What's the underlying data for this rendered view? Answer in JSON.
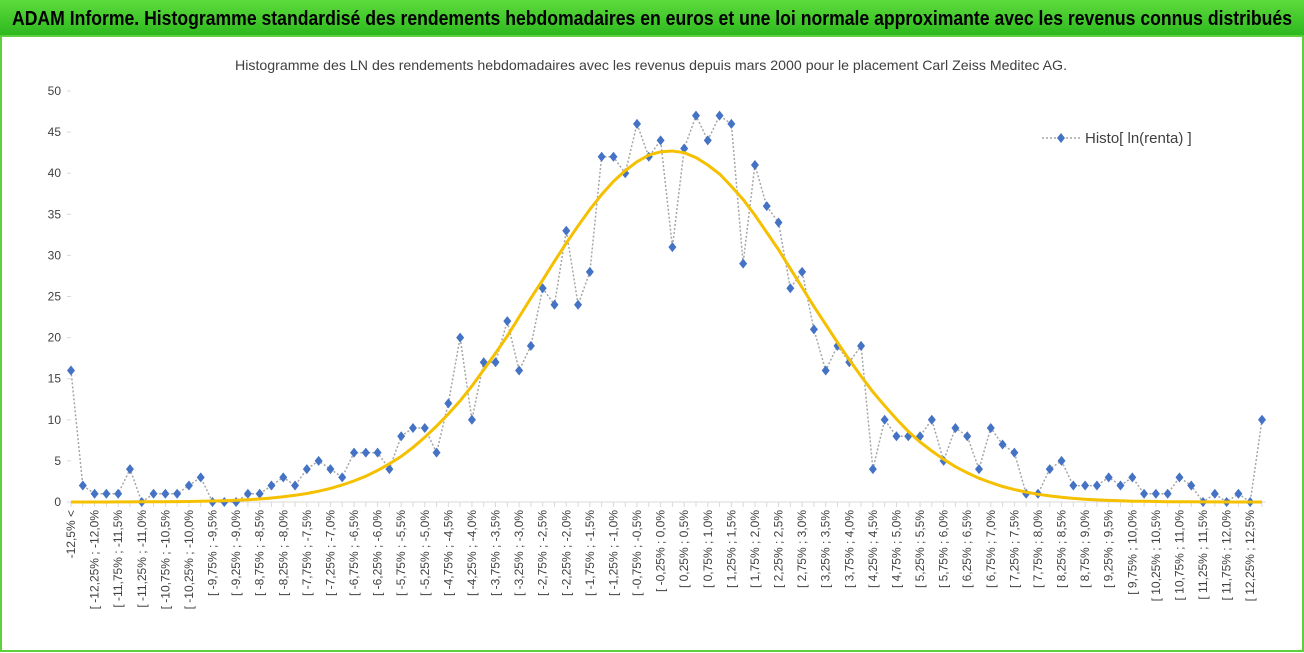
{
  "header": {
    "title": "ADAM Informe. Histogramme standardisé des rendements hebdomadaires en euros et une loi normale approximante avec les revenus connus distribués"
  },
  "chart_data": {
    "type": "line",
    "title": "Histogramme des LN des rendements hebdomadaires avec les revenus depuis mars 2000 pour le placement Carl Zeiss Meditec AG.",
    "categories": [
      "-12,5% <",
      null,
      "[ -12,25% ; -12,0%",
      null,
      "[ -11,75% ; -11,5%",
      null,
      "[ -11,25% ; -11,0%",
      null,
      "[ -10,75% ; -10,5%",
      null,
      "[ -10,25% ; -10,0%",
      null,
      "[ -9,75% ; -9,5%",
      null,
      "[ -9,25% ; -9,0%",
      null,
      "[ -8,75% ; -8,5%",
      null,
      "[ -8,25% ; -8,0%",
      null,
      "[ -7,75% ; -7,5%",
      null,
      "[ -7,25% ; -7,0%",
      null,
      "[ -6,75% ; -6,5%",
      null,
      "[ -6,25% ; -6,0%",
      null,
      "[ -5,75% ; -5,5%",
      null,
      "[ -5,25% ; -5,0%",
      null,
      "[ -4,75% ; -4,5%",
      null,
      "[ -4,25% ; -4,0%",
      null,
      "[ -3,75% ; -3,5%",
      null,
      "[ -3,25% ; -3,0%",
      null,
      "[ -2,75% ; -2,5%",
      null,
      "[ -2,25% ; -2,0%",
      null,
      "[ -1,75% ; -1,5%",
      null,
      "[ -1,25% ; -1,0%",
      null,
      "[ -0,75% ; -0,5%",
      null,
      "[ -0,25% ; 0,0%",
      null,
      "[ 0,25% ; 0,5%",
      null,
      "[ 0,75% ; 1,0%",
      null,
      "[ 1,25% ; 1,5%",
      null,
      "[ 1,75% ; 2,0%",
      null,
      "[ 2,25% ; 2,5%",
      null,
      "[ 2,75% ; 3,0%",
      null,
      "[ 3,25% ; 3,5%",
      null,
      "[ 3,75% ; 4,0%",
      null,
      "[ 4,25% ; 4,5%",
      null,
      "[ 4,75% ; 5,0%",
      null,
      "[ 5,25% ; 5,5%",
      null,
      "[ 5,75% ; 6,0%",
      null,
      "[ 6,25% ; 6,5%",
      null,
      "[ 6,75% ; 7,0%",
      null,
      "[ 7,25% ; 7,5%",
      null,
      "[ 7,75% ; 8,0%",
      null,
      "[ 8,25% ; 8,5%",
      null,
      "[ 8,75% ; 9,0%",
      null,
      "[ 9,25% ; 9,5%",
      null,
      "[ 9,75% ; 10,0%",
      null,
      "[ 10,25% ; 10,5%",
      null,
      "[ 10,75% ; 11,0%",
      null,
      "[ 11,25% ; 11,5%",
      null,
      "[ 11,75% ; 12,0%",
      null,
      "[ 12,25% ; 12,5%",
      null
    ],
    "series": [
      {
        "name": "Histo[ ln(renta) ]",
        "color": "#4472c4",
        "line_color": "#a6a6a6",
        "values": [
          16,
          2,
          1,
          1,
          1,
          4,
          0,
          1,
          1,
          1,
          2,
          3,
          0,
          0,
          0,
          1,
          1,
          2,
          3,
          2,
          4,
          5,
          4,
          3,
          6,
          6,
          6,
          4,
          8,
          9,
          9,
          6,
          12,
          20,
          10,
          17,
          17,
          22,
          16,
          19,
          26,
          24,
          33,
          24,
          28,
          42,
          42,
          40,
          46,
          42,
          44,
          31,
          43,
          47,
          44,
          47,
          46,
          29,
          41,
          36,
          34,
          26,
          28,
          21,
          16,
          19,
          17,
          19,
          4,
          10,
          8,
          8,
          8,
          10,
          5,
          9,
          8,
          4,
          9,
          7,
          6,
          1,
          1,
          4,
          5,
          2,
          2,
          2,
          3,
          2,
          3,
          1,
          1,
          1,
          3,
          2,
          0,
          1,
          0,
          1,
          0,
          10
        ]
      },
      {
        "color": "#f5c000",
        "values": [
          0,
          0,
          0,
          0,
          0.01,
          0.01,
          0.02,
          0.02,
          0.03,
          0.05,
          0.06,
          0.09,
          0.12,
          0.16,
          0.21,
          0.28,
          0.37,
          0.49,
          0.63,
          0.81,
          1.04,
          1.31,
          1.66,
          2.07,
          2.57,
          3.14,
          3.84,
          4.65,
          5.55,
          6.64,
          7.87,
          9.24,
          10.7,
          12.3,
          14.1,
          16.1,
          18.1,
          20.2,
          22.5,
          24.8,
          27,
          29.3,
          31.5,
          33.6,
          35.6,
          37.4,
          39,
          40.3,
          41.4,
          42.2,
          42.6,
          42.7,
          42.5,
          41.9,
          41,
          39.9,
          38.4,
          36.8,
          34.9,
          32.8,
          30.7,
          28.4,
          26.1,
          23.8,
          21.6,
          19.4,
          17.3,
          15.3,
          13.4,
          11.7,
          10.1,
          8.6,
          7.3,
          6.2,
          5.2,
          4.3,
          3.55,
          2.9,
          2.36,
          1.89,
          1.51,
          1.2,
          0.94,
          0.74,
          0.57,
          0.44,
          0.33,
          0.25,
          0.19,
          0.14,
          0.1,
          0.08,
          0.06,
          0.04,
          0.03,
          0.02,
          0.01,
          0.01,
          0,
          0,
          0,
          0
        ]
      }
    ],
    "ylim": [
      0,
      50
    ],
    "yticks": [
      0,
      5,
      10,
      15,
      20,
      25,
      30,
      35,
      40,
      45,
      50
    ],
    "legend": "top-right"
  }
}
